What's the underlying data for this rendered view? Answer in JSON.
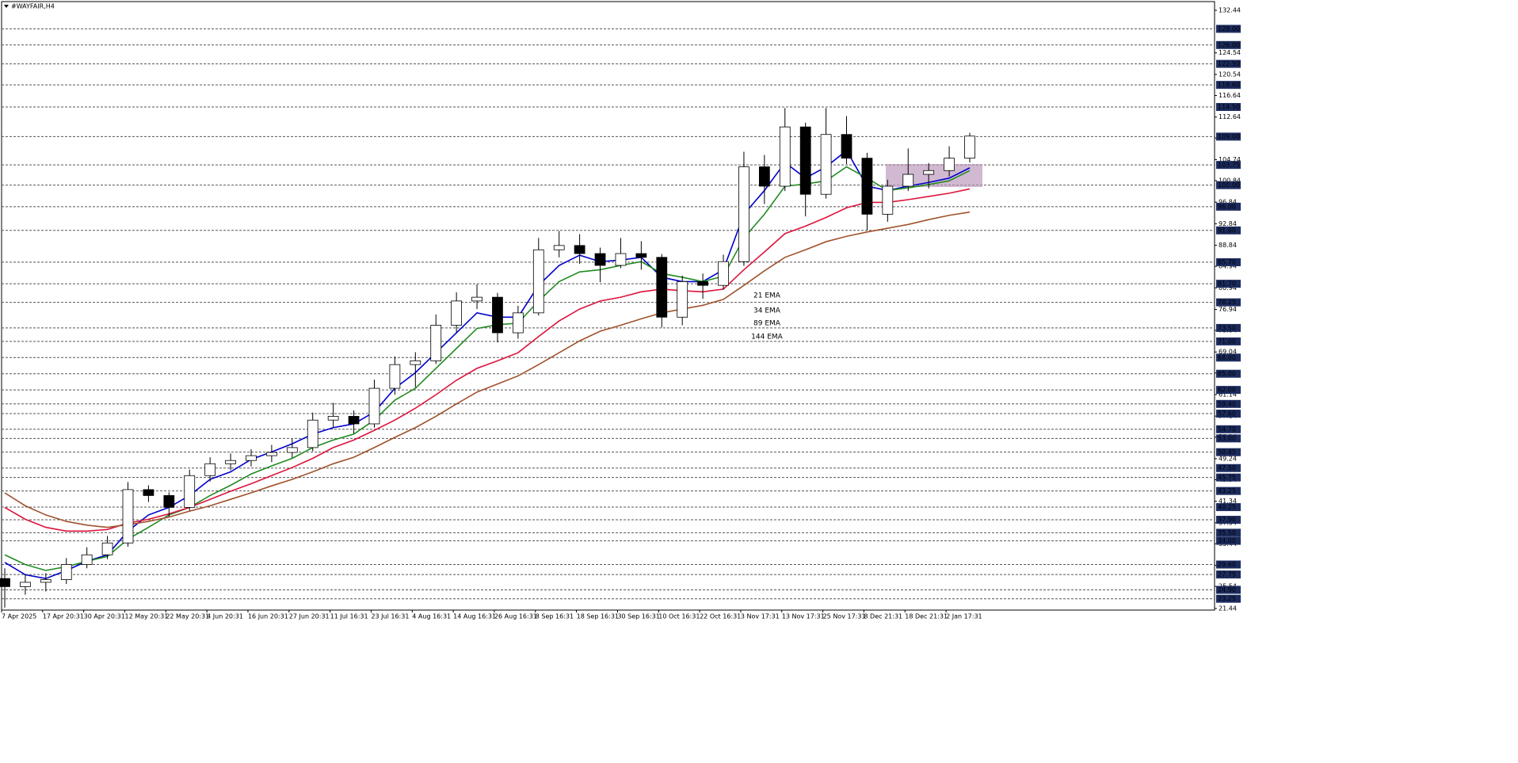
{
  "chart_data": {
    "type": "candlestick",
    "title": "#WAYFAIR,H4",
    "xticks": [
      "7 Apr 2025",
      "17 Apr 20:31",
      "30 Apr 20:31",
      "12 May 20:31",
      "22 May 20:31",
      "4 Jun 20:31",
      "16 Jun 20:31",
      "27 Jun 20:31",
      "11 Jul 16:31",
      "23 Jul 16:31",
      "4 Aug 16:31",
      "14 Aug 16:31",
      "26 Aug 16:31",
      "8 Sep 16:31",
      "18 Sep 16:31",
      "30 Sep 16:31",
      "10 Oct 16:31",
      "22 Oct 16:31",
      "3 Nov 17:31",
      "13 Nov 17:31",
      "25 Nov 17:31",
      "8 Dec 21:31",
      "18 Dec 21:31",
      "2 Jan 17:31"
    ],
    "open": [
      27.0,
      25.5,
      26.3,
      26.8,
      29.6,
      31.4,
      33.6,
      43.5,
      42.4,
      40.2,
      46.1,
      48.3,
      48.9,
      49.8,
      50.4,
      51.3,
      56.4,
      57.1,
      55.7,
      62.3,
      66.7,
      67.4,
      74.0,
      78.5,
      79.2,
      72.6,
      76.3,
      88.0,
      88.8,
      87.3,
      85.1,
      87.3,
      86.6,
      75.5,
      82.1,
      81.4,
      85.8,
      103.4,
      99.8,
      110.8,
      98.3,
      109.4,
      105.0,
      94.6,
      99.8,
      102.0,
      102.7,
      105.0
    ],
    "high": [
      28.9,
      27.8,
      28.0,
      30.8,
      32.8,
      34.9,
      44.9,
      44.3,
      43.0,
      47.2,
      49.5,
      50.2,
      51.0,
      51.8,
      52.9,
      57.8,
      59.6,
      58.2,
      63.9,
      68.2,
      69.0,
      76.0,
      80.1,
      81.6,
      80.0,
      77.6,
      90.2,
      91.5,
      90.9,
      88.4,
      90.2,
      89.6,
      87.2,
      83.2,
      83.6,
      87.1,
      106.2,
      105.6,
      114.3,
      111.6,
      114.3,
      112.8,
      106.0,
      101.0,
      106.8,
      104.1,
      107.2,
      109.7
    ],
    "low": [
      21.6,
      24.0,
      24.6,
      26.0,
      28.9,
      30.6,
      32.9,
      41.2,
      38.5,
      39.6,
      45.0,
      47.1,
      47.8,
      48.6,
      49.4,
      50.6,
      55.0,
      53.9,
      55.0,
      61.1,
      62.5,
      66.8,
      72.6,
      77.0,
      70.8,
      71.5,
      75.8,
      86.6,
      85.4,
      82.0,
      84.6,
      84.3,
      73.6,
      74.0,
      78.9,
      80.6,
      85.0,
      96.5,
      98.9,
      94.2,
      97.5,
      103.9,
      91.6,
      93.2,
      98.9,
      99.4,
      101.6,
      104.2
    ],
    "close": [
      25.5,
      26.3,
      26.8,
      29.6,
      31.4,
      33.6,
      43.5,
      42.4,
      40.2,
      46.1,
      48.3,
      48.9,
      49.8,
      50.4,
      51.3,
      56.4,
      57.1,
      55.7,
      62.3,
      66.7,
      67.4,
      74.0,
      78.5,
      79.2,
      72.6,
      76.3,
      88.0,
      88.8,
      87.3,
      85.1,
      87.3,
      86.6,
      75.5,
      82.1,
      81.4,
      85.8,
      103.4,
      99.8,
      110.8,
      98.3,
      109.4,
      105.0,
      94.6,
      99.8,
      102.0,
      102.7,
      105.0,
      109.1
    ],
    "up_color": "#ffffff",
    "down_color": "#000000",
    "series": [
      {
        "name": "21 EMA",
        "color": "#0000cd",
        "values": [
          30.0,
          27.7,
          27.0,
          28.5,
          30.2,
          31.4,
          35.8,
          38.8,
          40.2,
          42.4,
          45.4,
          46.8,
          49.1,
          50.5,
          52.0,
          53.8,
          55.0,
          55.7,
          57.9,
          62.3,
          65.2,
          68.9,
          72.6,
          76.3,
          75.5,
          75.5,
          81.4,
          85.1,
          87.0,
          85.8,
          86.1,
          86.6,
          82.9,
          82.1,
          82.1,
          84.3,
          94.6,
          99.0,
          104.2,
          101.3,
          103.4,
          106.4,
          99.8,
          99.0,
          99.8,
          100.5,
          101.3,
          103.2
        ]
      },
      {
        "name": "34 EMA",
        "color": "#228b22",
        "values": [
          31.4,
          29.6,
          28.5,
          29.2,
          30.2,
          31.1,
          34.3,
          36.5,
          38.8,
          40.2,
          42.4,
          44.3,
          46.4,
          47.9,
          49.3,
          51.3,
          52.7,
          53.8,
          56.4,
          60.1,
          62.3,
          66.0,
          69.7,
          73.4,
          74.1,
          74.4,
          78.5,
          82.1,
          83.9,
          84.3,
          85.1,
          85.8,
          83.6,
          82.9,
          82.1,
          83.1,
          90.2,
          94.6,
          99.8,
          100.2,
          100.8,
          103.4,
          101.3,
          99.0,
          99.5,
          100.1,
          100.8,
          102.7
        ]
      },
      {
        "name": "89 EMA",
        "color": "#dc143c",
        "values": [
          40.2,
          38.0,
          36.5,
          35.8,
          35.8,
          36.1,
          37.3,
          38.0,
          39.0,
          40.2,
          41.7,
          43.2,
          44.6,
          46.1,
          47.6,
          49.3,
          51.3,
          52.7,
          54.5,
          56.4,
          58.6,
          61.1,
          63.8,
          66.0,
          67.4,
          68.9,
          71.9,
          74.8,
          77.0,
          78.5,
          79.2,
          80.2,
          80.7,
          80.4,
          80.2,
          80.7,
          84.3,
          87.6,
          91.0,
          92.4,
          94.0,
          95.8,
          96.8,
          96.8,
          97.3,
          97.9,
          98.5,
          99.3
        ]
      },
      {
        "name": "144 EMA",
        "color": "#a0522d",
        "values": [
          42.9,
          40.5,
          38.8,
          37.6,
          36.9,
          36.5,
          37.0,
          37.6,
          38.4,
          39.5,
          40.5,
          41.7,
          42.9,
          44.2,
          45.4,
          46.8,
          48.3,
          49.5,
          51.3,
          53.2,
          55.0,
          57.1,
          59.4,
          61.6,
          63.1,
          64.6,
          66.7,
          68.9,
          71.1,
          72.9,
          74.0,
          75.2,
          76.3,
          77.0,
          77.7,
          78.8,
          81.4,
          84.1,
          86.6,
          88.0,
          89.5,
          90.5,
          91.3,
          92.0,
          92.7,
          93.6,
          94.4,
          95.0
        ]
      }
    ],
    "ylim": [
      21.44,
      132.44
    ],
    "yticks": [
      132.44,
      124.54,
      120.54,
      116.64,
      112.64,
      108.74,
      104.74,
      100.84,
      96.84,
      92.84,
      88.84,
      84.94,
      80.94,
      76.94,
      73.04,
      69.04,
      65.14,
      61.14,
      57.14,
      53.24,
      49.24,
      45.34,
      41.34,
      37.34,
      33.44,
      29.44,
      25.54,
      21.44
    ],
    "levels": [
      {
        "value": 129,
        "label": "129.00"
      },
      {
        "value": 126,
        "label": "126.00"
      },
      {
        "value": 122.5,
        "label": "122.50"
      },
      {
        "value": 118.6,
        "label": "118.60"
      },
      {
        "value": 114.5,
        "label": "114.50"
      },
      {
        "value": 109,
        "label": "109.00"
      },
      {
        "value": 103.75,
        "label": "103.75"
      },
      {
        "value": 100,
        "label": "100.00"
      },
      {
        "value": 96,
        "label": "96.00"
      },
      {
        "value": 91.6,
        "label": "91.60"
      },
      {
        "value": 85.7,
        "label": "85.70"
      },
      {
        "value": 81.7,
        "label": "81.70"
      },
      {
        "value": 78.25,
        "label": "78.25"
      },
      {
        "value": 73.5,
        "label": "73.50"
      },
      {
        "value": 71,
        "label": "71.00"
      },
      {
        "value": 68,
        "label": "68.00"
      },
      {
        "value": 65,
        "label": "65.00"
      },
      {
        "value": 62,
        "label": "62.00"
      },
      {
        "value": 59.4,
        "label": "59.40"
      },
      {
        "value": 57.6,
        "label": "57.60"
      },
      {
        "value": 54.7,
        "label": "54.70"
      },
      {
        "value": 53,
        "label": "53.00"
      },
      {
        "value": 50.45,
        "label": "50.45"
      },
      {
        "value": 47.5,
        "label": "47.50"
      },
      {
        "value": 45.75,
        "label": "45.75"
      },
      {
        "value": 43.25,
        "label": "43.25"
      },
      {
        "value": 40.25,
        "label": "40.25"
      },
      {
        "value": 37.9,
        "label": "37.90"
      },
      {
        "value": 35.5,
        "label": "35.50"
      },
      {
        "value": 34,
        "label": "34.00"
      },
      {
        "value": 29.6,
        "label": "29.60"
      },
      {
        "value": 27.75,
        "label": "27.75"
      },
      {
        "value": 24.9,
        "label": "24.90"
      },
      {
        "value": 23.25,
        "label": "23.25"
      }
    ],
    "level_color": "#1c2b5e"
  }
}
